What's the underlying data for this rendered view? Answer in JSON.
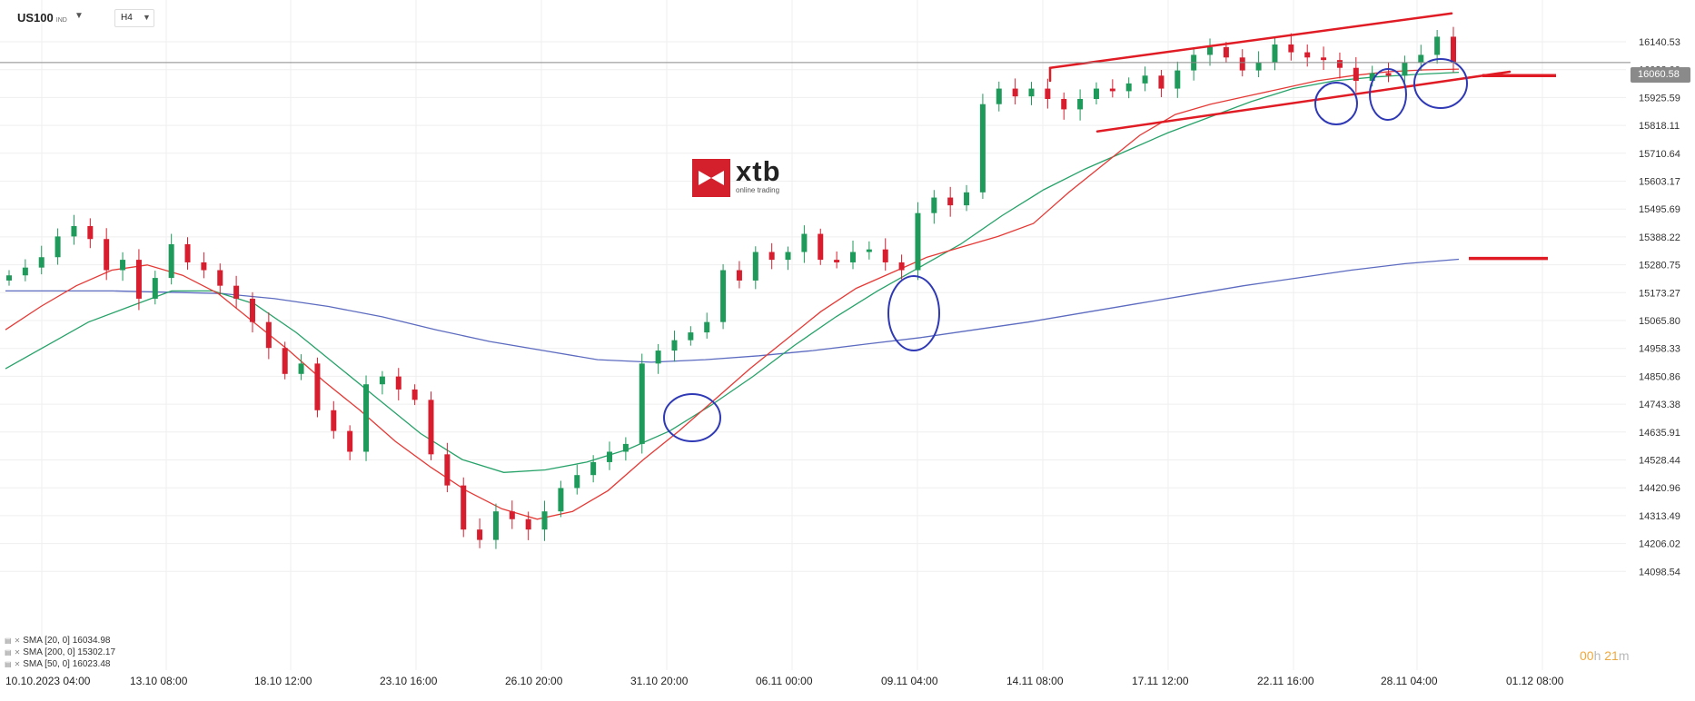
{
  "header": {
    "symbol": "US100",
    "symbol_suffix": "IND",
    "timeframe": "H4"
  },
  "logo": {
    "word": "xtb",
    "tagline": "online trading"
  },
  "current_price_label": "16060.58",
  "countdown": {
    "hours": "00",
    "h_unit": "h",
    "minutes": "21",
    "m_unit": "m"
  },
  "legend": [
    {
      "text": "SMA  [20, 0]  16034.98",
      "color": "#e53935"
    },
    {
      "text": "SMA  [200, 0]  15302.17",
      "color": "#5c6bc0"
    },
    {
      "text": "SMA  [50, 0]  16023.48",
      "color": "#26a269"
    }
  ],
  "colors": {
    "bull": "#1e9b5a",
    "bear": "#d81e2e",
    "sma20": "#e53935",
    "sma50": "#26a269",
    "sma200": "#5c6bc0",
    "annotation_red": "#e01b24",
    "annotation_blue": "#2f39b5",
    "grid": "#efefef",
    "price_line": "#8a8a8a"
  },
  "chart_data": {
    "type": "candlestick",
    "instrument": "US100",
    "timeframe": "H4",
    "y_ticks": [
      "16140.53",
      "16033.00",
      "15925.59",
      "15818.11",
      "15710.64",
      "15603.17",
      "15495.69",
      "15388.22",
      "15280.75",
      "15173.27",
      "15065.80",
      "14958.33",
      "14850.86",
      "14743.38",
      "14635.91",
      "14528.44",
      "14420.96",
      "14313.49",
      "14206.02",
      "14098.54"
    ],
    "x_ticks": [
      "10.10.2023  04:00",
      "13.10  08:00",
      "18.10  12:00",
      "23.10  16:00",
      "26.10  20:00",
      "31.10  20:00",
      "06.11  00:00",
      "09.11  04:00",
      "14.11  08:00",
      "17.11  12:00",
      "22.11  16:00",
      "28.11  04:00",
      "01.12  08:00"
    ],
    "ylim": [
      14098.54,
      16250
    ],
    "current_price": 16060.58,
    "close_path": [
      15240,
      15270,
      15310,
      15390,
      15430,
      15380,
      15260,
      15300,
      15150,
      15230,
      15360,
      15290,
      15260,
      15200,
      15150,
      15060,
      14960,
      14860,
      14900,
      14720,
      14640,
      14560,
      14820,
      14850,
      14800,
      14760,
      14550,
      14430,
      14260,
      14220,
      14330,
      14300,
      14260,
      14330,
      14420,
      14470,
      14520,
      14560,
      14590,
      14900,
      14950,
      14990,
      15020,
      15060,
      15260,
      15220,
      15330,
      15300,
      15330,
      15400,
      15300,
      15290,
      15330,
      15340,
      15290,
      15260,
      15480,
      15540,
      15510,
      15560,
      15900,
      15960,
      15930,
      15960,
      15920,
      15880,
      15920,
      15960,
      15950,
      15980,
      16010,
      15960,
      16030,
      16090,
      16120,
      16080,
      16030,
      16060,
      16130,
      16100,
      16080,
      16070,
      16040,
      15990,
      16020,
      16010,
      16060,
      16090,
      16160,
      16060
    ],
    "sma20": [
      15030,
      15120,
      15200,
      15260,
      15280,
      15240,
      15170,
      15060,
      14950,
      14830,
      14720,
      14600,
      14500,
      14410,
      14340,
      14300,
      14330,
      14410,
      14530,
      14640,
      14760,
      14880,
      14990,
      15100,
      15190,
      15250,
      15310,
      15350,
      15390,
      15440,
      15560,
      15670,
      15780,
      15860,
      15900,
      15930,
      15960,
      15990,
      16010,
      16025,
      16032,
      16035
    ],
    "sma50": [
      14880,
      14970,
      15060,
      15120,
      15180,
      15180,
      15130,
      15020,
      14890,
      14760,
      14630,
      14530,
      14480,
      14490,
      14520,
      14570,
      14640,
      14740,
      14850,
      14970,
      15080,
      15180,
      15270,
      15360,
      15470,
      15570,
      15650,
      15720,
      15790,
      15850,
      15910,
      15960,
      15990,
      16005,
      16015,
      16023
    ],
    "sma200": [
      15180,
      15180,
      15180,
      15175,
      15170,
      15150,
      15120,
      15080,
      15030,
      14985,
      14950,
      14915,
      14905,
      14915,
      14930,
      14950,
      14975,
      15000,
      15030,
      15060,
      15095,
      15130,
      15165,
      15200,
      15230,
      15260,
      15285,
      15302
    ],
    "series": [
      {
        "name": "SMA [20, 0]",
        "last": 16034.98
      },
      {
        "name": "SMA [200, 0]",
        "last": 15302.17
      },
      {
        "name": "SMA [50, 0]",
        "last": 16023.48
      }
    ],
    "grid": true
  }
}
